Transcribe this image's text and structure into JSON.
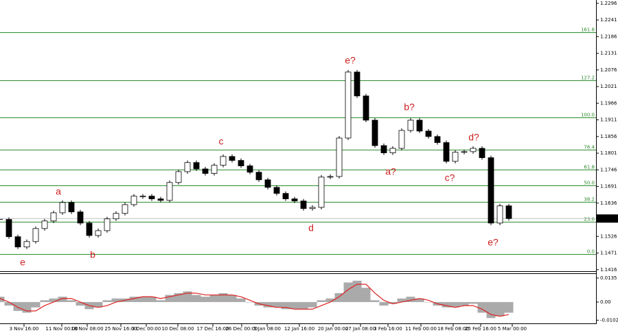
{
  "chart_data": [
    {
      "type": "candlestick",
      "values": [
        1.1582,
        1.1525,
        1.1491,
        1.1509,
        1.1552,
        1.1577,
        1.1604,
        1.1638,
        1.1607,
        1.157,
        1.1529,
        1.1545,
        1.1584,
        1.1602,
        1.1631,
        1.1659,
        1.1659,
        1.165,
        1.1645,
        1.1704,
        1.174,
        1.177,
        1.1749,
        1.1734,
        1.1761,
        1.179,
        1.1777,
        1.1759,
        1.1738,
        1.1713,
        1.1688,
        1.1668,
        1.165,
        1.1643,
        1.1618,
        1.1622,
        1.1722,
        1.1724,
        1.1851,
        1.2069,
        1.199,
        1.191,
        1.1826,
        1.1802,
        1.1817,
        1.1876,
        1.191,
        1.1874,
        1.1856,
        1.1836,
        1.1774,
        1.1804,
        1.1806,
        1.1817,
        1.1786,
        1.157,
        1.1627,
        1.1585
      ],
      "ylim": [
        1.1411,
        1.2307
      ],
      "yticks": [
        1.2296,
        1.2241,
        1.2186,
        1.2131,
        1.2076,
        1.2021,
        1.1966,
        1.1911,
        1.1856,
        1.1801,
        1.1746,
        1.1691,
        1.1636,
        1.1526,
        1.1471,
        1.1416
      ],
      "color_up": "#ffffff",
      "color_down": "#000000",
      "fib_color": "#2e8b2e",
      "fib_levels": [
        {
          "label": "161.8",
          "price": 1.22
        },
        {
          "label": "127.2",
          "price": 1.2042
        },
        {
          "label": "100.0",
          "price": 1.192
        },
        {
          "label": "76.4",
          "price": 1.1813
        },
        {
          "label": "61.8",
          "price": 1.1747
        },
        {
          "label": "50.0",
          "price": 1.1695
        },
        {
          "label": "38.2",
          "price": 1.1641
        },
        {
          "label": "23.6",
          "price": 1.1575
        },
        {
          "label": "0.0",
          "price": 1.1468
        }
      ],
      "annotation_color": "#cc1f1f",
      "annotations": [
        "e",
        "a",
        "b",
        "c",
        "d",
        "e?",
        "a?",
        "b?",
        "c?",
        "d?",
        "e?"
      ],
      "x_labels": [
        "3 Nov 16:00",
        "11 Nov 00:00",
        "18 Nov 08:00",
        "25 Nov 16:00",
        "3 Dec 00:00",
        "10 Dec 08:00",
        "17 Dec 16:00",
        "26 Dec 00:00",
        "5 Jan 08:00",
        "12 Jan 16:00",
        "20 Jan 00:00",
        "27 Jan 08:00",
        "3 Feb 16:00",
        "11 Feb 00:00",
        "18 Feb 08:00",
        "25 Feb 16:00",
        "5 Mar 00:00"
      ]
    },
    {
      "type": "oscillator",
      "histogram": {
        "color": "#aaaaaa",
        "values": [
          0.003,
          -0.002,
          -0.005,
          -0.006,
          -0.003,
          0.001,
          0.002,
          0.003,
          0.001,
          -0.002,
          -0.004,
          -0.003,
          0.001,
          0.002,
          0.002,
          0.003,
          0.003,
          0.003,
          0.001,
          0.004,
          0.005,
          0.006,
          0.004,
          0.003,
          0.004,
          0.005,
          0.004,
          0.002,
          0,
          -0.002,
          -0.003,
          -0.003,
          -0.004,
          -0.004,
          -0.004,
          -0.003,
          0.001,
          0.002,
          0.005,
          0.011,
          0.012,
          0.008,
          0.001,
          -0.002,
          -0.001,
          0.002,
          0.003,
          0.002,
          0,
          -0.002,
          -0.003,
          -0.003,
          -0.002,
          -0.001,
          -0.006,
          -0.009,
          -0.008,
          -0.006
        ]
      },
      "signal": {
        "color": "#e02020",
        "values": [
          0.002,
          0,
          -0.003,
          -0.005,
          -0.005,
          -0.002,
          0,
          0.002,
          0.002,
          0,
          -0.002,
          -0.003,
          -0.002,
          0,
          0.001,
          0.002,
          0.003,
          0.003,
          0.002,
          0.003,
          0.004,
          0.005,
          0.005,
          0.004,
          0.004,
          0.004,
          0.004,
          0.003,
          0.001,
          -0.001,
          -0.002,
          -0.003,
          -0.003,
          -0.004,
          -0.004,
          -0.004,
          -0.002,
          0,
          0.003,
          0.007,
          0.01,
          0.01,
          0.005,
          0.001,
          -0.001,
          0,
          0.001,
          0.002,
          0.001,
          -0.001,
          -0.002,
          -0.003,
          -0.002,
          -0.002,
          -0.004,
          -0.007,
          -0.008,
          -0.007
        ]
      },
      "ylim": [
        -0.012,
        0.0158
      ],
      "yticks": [
        0.0135,
        {
          "value": 0,
          "label": "0.00"
        },
        -0.0102
      ]
    }
  ]
}
